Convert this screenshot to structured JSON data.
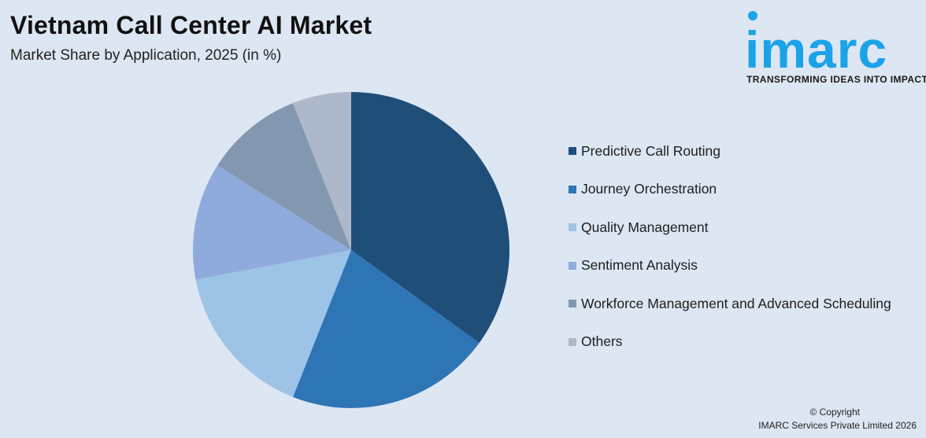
{
  "header": {
    "title": "Vietnam Call Center AI Market",
    "subtitle": "Market Share by Application, 2025 (in %)"
  },
  "logo": {
    "word": "imarc",
    "tagline": "TRANSFORMING IDEAS INTO IMPACT",
    "color": "#1ba3e8"
  },
  "chart_data": {
    "type": "pie",
    "title": "Vietnam Call Center AI Market",
    "subtitle": "Market Share by Application, 2025 (in %)",
    "legend_position": "right",
    "slices": [
      {
        "label": "Predictive Call Routing",
        "value": 35,
        "color": "#1f4e79"
      },
      {
        "label": "Journey Orchestration",
        "value": 21,
        "color": "#2e75b6"
      },
      {
        "label": "Quality Management",
        "value": 16,
        "color": "#9dc3e6"
      },
      {
        "label": "Sentiment Analysis",
        "value": 12,
        "color": "#8faadc"
      },
      {
        "label": "Workforce Management and Advanced Scheduling",
        "value": 10,
        "color": "#8497b0"
      },
      {
        "label": "Others",
        "value": 6,
        "color": "#adb9ca"
      }
    ]
  },
  "footer": {
    "copyright_line1": "© Copyright",
    "copyright_line2": "IMARC Services Private Limited 2026"
  }
}
